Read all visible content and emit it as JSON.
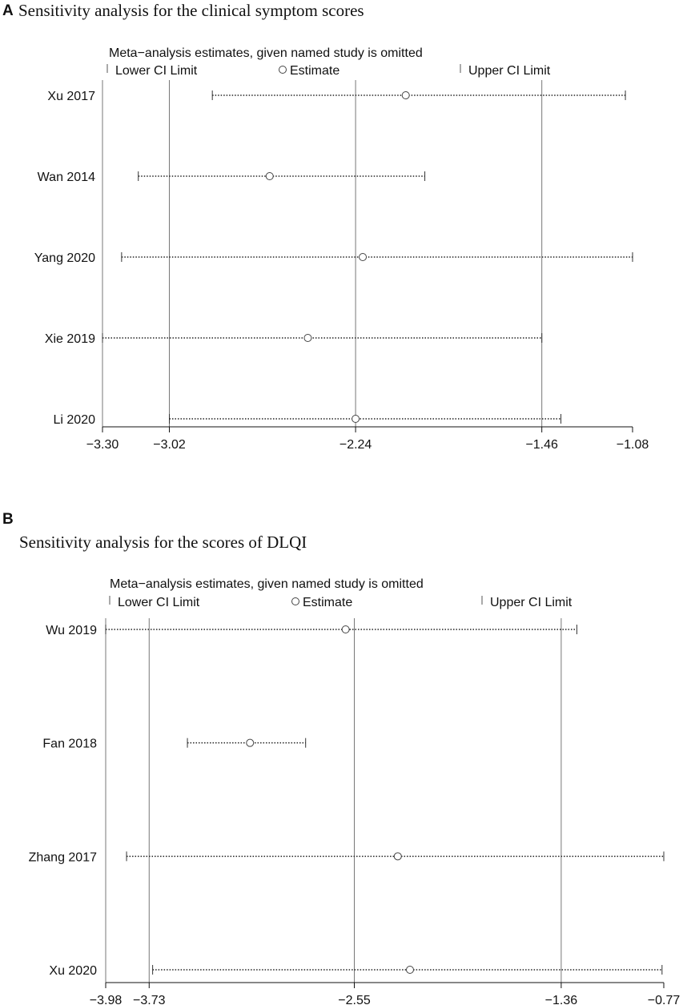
{
  "chart_data": [
    {
      "type": "forest",
      "panel_letter": "A",
      "title": "Sensitivity analysis for the clinical symptom scores",
      "subtitle": "Meta−analysis estimates, given named study is omitted",
      "legend": {
        "lower": "Lower CI Limit",
        "estimate": "Estimate",
        "upper": "Upper CI Limit"
      },
      "xlim": [
        -3.3,
        -1.08
      ],
      "xticks": [
        {
          "value": -3.3,
          "label": "−3.30"
        },
        {
          "value": -3.02,
          "label": "−3.02"
        },
        {
          "value": -2.24,
          "label": "−2.24"
        },
        {
          "value": -1.46,
          "label": "−1.46"
        },
        {
          "value": -1.08,
          "label": "−1.08"
        }
      ],
      "reference_lines": [
        -3.02,
        -2.24,
        -1.46
      ],
      "studies": [
        {
          "name": "Xu 2017",
          "estimate": -2.03,
          "lower": -2.84,
          "upper": -1.11
        },
        {
          "name": "Wan 2014",
          "estimate": -2.6,
          "lower": -3.15,
          "upper": -1.95
        },
        {
          "name": "Yang 2020",
          "estimate": -2.21,
          "lower": -3.22,
          "upper": -1.08
        },
        {
          "name": "Xie 2019",
          "estimate": -2.44,
          "lower": -3.3,
          "upper": -1.46
        },
        {
          "name": "Li 2020",
          "estimate": -2.24,
          "lower": -3.02,
          "upper": -1.38
        }
      ]
    },
    {
      "type": "forest",
      "panel_letter": "B",
      "title": "Sensitivity analysis for the scores of DLQI",
      "subtitle": "Meta−analysis estimates, given named study is omitted",
      "legend": {
        "lower": "Lower CI Limit",
        "estimate": "Estimate",
        "upper": "Upper CI Limit"
      },
      "xlim": [
        -3.98,
        -0.77
      ],
      "xticks": [
        {
          "value": -3.98,
          "label": "−3.98"
        },
        {
          "value": -3.73,
          "label": "−3.73"
        },
        {
          "value": -2.55,
          "label": "−2.55"
        },
        {
          "value": -1.36,
          "label": "−1.36"
        },
        {
          "value": -0.77,
          "label": "−0.77"
        }
      ],
      "reference_lines": [
        -3.73,
        -2.55,
        -1.36
      ],
      "studies": [
        {
          "name": "Wu 2019",
          "estimate": -2.6,
          "lower": -3.98,
          "upper": -1.27
        },
        {
          "name": "Fan 2018",
          "estimate": -3.15,
          "lower": -3.51,
          "upper": -2.83
        },
        {
          "name": "Zhang 2017",
          "estimate": -2.3,
          "lower": -3.86,
          "upper": -0.77
        },
        {
          "name": "Xu 2020",
          "estimate": -2.23,
          "lower": -3.71,
          "upper": -0.78
        }
      ]
    }
  ]
}
